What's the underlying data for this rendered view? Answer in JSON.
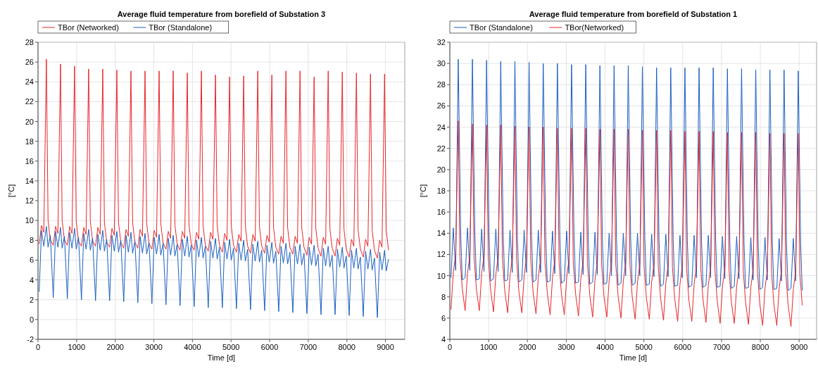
{
  "chart_data": [
    {
      "type": "line",
      "title": "Average fluid temperature from borefield of Substation 3",
      "xlabel": "Time [d]",
      "ylabel": "[°C]",
      "xlim": [
        0,
        9500
      ],
      "xticks": [
        0,
        1000,
        2000,
        3000,
        4000,
        5000,
        6000,
        7000,
        8000,
        9000
      ],
      "ylim": [
        -2,
        28
      ],
      "yticks": [
        -2,
        0,
        2,
        4,
        6,
        8,
        10,
        12,
        14,
        16,
        18,
        20,
        22,
        24,
        26,
        28
      ],
      "grid": true,
      "legend": "top left",
      "line_style": "solid",
      "x": [
        30,
        90,
        150,
        217,
        260,
        320,
        395,
        455,
        515,
        582,
        625,
        685,
        760,
        820,
        880,
        947,
        990,
        1050,
        1125,
        1185,
        1245,
        1312,
        1355,
        1415,
        1490,
        1550,
        1610,
        1677,
        1720,
        1780,
        1855,
        1915,
        1975,
        2042,
        2085,
        2145,
        2220,
        2280,
        2340,
        2407,
        2450,
        2510,
        2585,
        2645,
        2705,
        2772,
        2815,
        2875,
        2950,
        3010,
        3070,
        3137,
        3180,
        3240,
        3315,
        3375,
        3435,
        3502,
        3545,
        3605,
        3680,
        3740,
        3800,
        3867,
        3910,
        3970,
        4045,
        4105,
        4165,
        4232,
        4275,
        4335,
        4410,
        4470,
        4530,
        4597,
        4640,
        4700,
        4775,
        4835,
        4895,
        4962,
        5005,
        5065,
        5140,
        5200,
        5260,
        5327,
        5370,
        5430,
        5505,
        5565,
        5625,
        5692,
        5735,
        5795,
        5870,
        5930,
        5990,
        6057,
        6100,
        6160,
        6235,
        6295,
        6355,
        6422,
        6465,
        6525,
        6600,
        6660,
        6720,
        6787,
        6830,
        6890,
        6965,
        7025,
        7085,
        7152,
        7195,
        7255,
        7330,
        7390,
        7450,
        7517,
        7560,
        7620,
        7695,
        7755,
        7815,
        7882,
        7925,
        7985,
        8060,
        8120,
        8180,
        8247,
        8290,
        8350,
        8425,
        8485,
        8545,
        8612,
        8655,
        8715,
        8790,
        8850,
        8910,
        8977,
        9020,
        9080
      ],
      "series": [
        {
          "name": "TBor (Networked)",
          "color": "#e8262b",
          "values": [
            7.6,
            9.5,
            8.8,
            26.3,
            10.0,
            8.0,
            7.5,
            9.4,
            8.7,
            25.8,
            10.0,
            8.0,
            7.5,
            9.4,
            8.7,
            25.6,
            9.9,
            7.9,
            7.4,
            9.3,
            8.6,
            25.3,
            9.9,
            7.9,
            7.4,
            9.3,
            8.6,
            25.3,
            9.8,
            7.8,
            7.3,
            9.2,
            8.5,
            25.2,
            9.8,
            7.8,
            7.2,
            9.1,
            8.4,
            25.1,
            9.8,
            7.8,
            7.2,
            9.1,
            8.4,
            25.1,
            9.7,
            7.7,
            7.1,
            9.0,
            8.3,
            25.1,
            9.7,
            7.7,
            7.1,
            8.9,
            8.2,
            25.1,
            9.6,
            7.6,
            7.0,
            8.9,
            8.2,
            24.9,
            9.6,
            7.6,
            7.0,
            8.8,
            8.1,
            25.1,
            9.5,
            7.5,
            6.9,
            8.8,
            8.1,
            24.7,
            9.5,
            7.5,
            6.8,
            8.7,
            8.0,
            24.5,
            9.5,
            7.5,
            6.8,
            8.6,
            7.9,
            24.6,
            9.4,
            7.4,
            6.7,
            8.6,
            7.9,
            25.1,
            9.4,
            7.4,
            6.7,
            8.5,
            7.8,
            24.7,
            9.3,
            7.3,
            6.6,
            8.4,
            7.7,
            25.1,
            9.3,
            7.3,
            6.6,
            8.4,
            7.7,
            25.1,
            9.3,
            7.3,
            6.5,
            8.3,
            7.6,
            24.5,
            9.2,
            7.2,
            6.4,
            8.3,
            7.6,
            25.1,
            9.2,
            7.2,
            6.4,
            8.2,
            7.5,
            25.0,
            9.1,
            7.1,
            6.3,
            8.1,
            7.4,
            24.9,
            9.1,
            7.1,
            6.3,
            8.1,
            7.4,
            24.8,
            9.0,
            7.0,
            6.2,
            8.0,
            7.3,
            24.8,
            9.0,
            7.0
          ]
        },
        {
          "name": "TBor (Standalone)",
          "color": "#1a5fc0",
          "values": [
            2.8,
            9.0,
            7.4,
            9.4,
            7.3,
            8.5,
            2.2,
            8.9,
            7.3,
            9.3,
            7.2,
            8.4,
            2.1,
            8.8,
            7.2,
            9.2,
            7.1,
            8.3,
            2.0,
            8.7,
            7.1,
            9.1,
            7.0,
            8.2,
            1.9,
            8.6,
            7.0,
            9.0,
            6.9,
            8.1,
            1.9,
            8.5,
            6.9,
            8.9,
            6.8,
            8.0,
            1.8,
            8.5,
            6.8,
            8.8,
            6.7,
            7.9,
            1.7,
            8.4,
            6.7,
            8.7,
            6.6,
            7.8,
            1.6,
            8.3,
            6.6,
            8.6,
            6.5,
            7.7,
            1.5,
            8.2,
            6.5,
            8.5,
            6.4,
            7.6,
            1.4,
            8.1,
            6.4,
            8.4,
            6.3,
            7.5,
            1.3,
            8.0,
            6.3,
            8.3,
            6.2,
            7.4,
            1.2,
            7.9,
            6.2,
            8.2,
            6.1,
            7.3,
            1.2,
            7.8,
            6.1,
            8.1,
            6.0,
            7.2,
            1.1,
            7.7,
            6.0,
            8.0,
            5.9,
            7.1,
            1.0,
            7.6,
            5.9,
            7.9,
            5.8,
            7.0,
            0.9,
            7.5,
            5.8,
            7.8,
            5.7,
            6.9,
            0.8,
            7.4,
            5.7,
            7.7,
            5.6,
            6.8,
            0.7,
            7.4,
            5.6,
            7.6,
            5.5,
            6.7,
            0.6,
            7.3,
            5.5,
            7.5,
            5.4,
            6.6,
            0.5,
            7.2,
            5.4,
            7.4,
            5.3,
            6.5,
            0.5,
            7.1,
            5.3,
            7.3,
            5.2,
            6.4,
            0.4,
            7.0,
            5.2,
            7.2,
            5.1,
            6.3,
            0.3,
            6.9,
            5.1,
            7.1,
            5.0,
            6.2,
            0.2,
            6.8,
            5.0,
            7.0,
            4.9,
            6.1
          ]
        }
      ]
    },
    {
      "type": "line",
      "title": "Average fluid temperature from borefield of Substation 1",
      "xlabel": "Time [d]",
      "ylabel": "[°C]",
      "xlim": [
        0,
        9450
      ],
      "xticks": [
        0,
        1000,
        2000,
        3000,
        4000,
        5000,
        6000,
        7000,
        8000,
        9000
      ],
      "ylim": [
        4,
        32
      ],
      "yticks": [
        4,
        6,
        8,
        10,
        12,
        14,
        16,
        18,
        20,
        22,
        24,
        26,
        28,
        30,
        32
      ],
      "grid": true,
      "legend": "top left",
      "line_style": "solid",
      "x": [
        30,
        90,
        150,
        217,
        260,
        320,
        395,
        455,
        515,
        582,
        625,
        685,
        760,
        820,
        880,
        947,
        990,
        1050,
        1125,
        1185,
        1245,
        1312,
        1355,
        1415,
        1490,
        1550,
        1610,
        1677,
        1720,
        1780,
        1855,
        1915,
        1975,
        2042,
        2085,
        2145,
        2220,
        2280,
        2340,
        2407,
        2450,
        2510,
        2585,
        2645,
        2705,
        2772,
        2815,
        2875,
        2950,
        3010,
        3070,
        3137,
        3180,
        3240,
        3315,
        3375,
        3435,
        3502,
        3545,
        3605,
        3680,
        3740,
        3800,
        3867,
        3910,
        3970,
        4045,
        4105,
        4165,
        4232,
        4275,
        4335,
        4410,
        4470,
        4530,
        4597,
        4640,
        4700,
        4775,
        4835,
        4895,
        4962,
        5005,
        5065,
        5140,
        5200,
        5260,
        5327,
        5370,
        5430,
        5505,
        5565,
        5625,
        5692,
        5735,
        5795,
        5870,
        5930,
        5990,
        6057,
        6100,
        6160,
        6235,
        6295,
        6355,
        6422,
        6465,
        6525,
        6600,
        6660,
        6720,
        6787,
        6830,
        6890,
        6965,
        7025,
        7085,
        7152,
        7195,
        7255,
        7330,
        7390,
        7450,
        7517,
        7560,
        7620,
        7695,
        7755,
        7815,
        7882,
        7925,
        7985,
        8060,
        8120,
        8180,
        8247,
        8290,
        8350,
        8425,
        8485,
        8545,
        8612,
        8655,
        8715,
        8790,
        8850,
        8910,
        8977,
        9020,
        9080
      ],
      "series": [
        {
          "name": "TBor (Standalone)",
          "color": "#1a5fc0",
          "x": [
            30,
            90,
            150,
            217,
            280,
            320,
            395,
            455,
            515,
            582,
            645,
            685,
            760,
            820,
            880,
            947,
            1010,
            1050,
            1125,
            1185,
            1245,
            1312,
            1375,
            1415,
            1490,
            1550,
            1610,
            1677,
            1740,
            1780,
            1855,
            1915,
            1975,
            2042,
            2105,
            2145,
            2220,
            2280,
            2340,
            2407,
            2470,
            2510,
            2585,
            2645,
            2705,
            2772,
            2835,
            2875,
            2950,
            3010,
            3070,
            3137,
            3200,
            3240,
            3315,
            3375,
            3435,
            3502,
            3565,
            3605,
            3680,
            3740,
            3800,
            3867,
            3930,
            3970,
            4045,
            4105,
            4165,
            4232,
            4295,
            4335,
            4410,
            4470,
            4530,
            4597,
            4660,
            4700,
            4775,
            4835,
            4895,
            4962,
            5025,
            5065,
            5140,
            5200,
            5260,
            5327,
            5390,
            5430,
            5505,
            5565,
            5625,
            5692,
            5755,
            5795,
            5870,
            5930,
            5990,
            6057,
            6120,
            6160,
            6235,
            6295,
            6355,
            6422,
            6485,
            6525,
            6600,
            6660,
            6720,
            6787,
            6850,
            6890,
            6965,
            7025,
            7085,
            7152,
            7215,
            7255,
            7330,
            7390,
            7450,
            7517,
            7580,
            7620,
            7695,
            7755,
            7815,
            7882,
            7945,
            7985,
            8060,
            8120,
            8180,
            8247,
            8310,
            8350,
            8425,
            8485,
            8545,
            8612,
            8675,
            8715,
            8790,
            8850,
            8910,
            8977,
            9040,
            9080
          ],
          "values": [
            9.8,
            14.5,
            10.5,
            30.4,
            14.0,
            9.6,
            9.8,
            14.5,
            10.5,
            30.4,
            14.0,
            9.6,
            9.7,
            14.4,
            10.4,
            30.3,
            13.9,
            9.5,
            9.7,
            14.4,
            10.4,
            30.2,
            13.9,
            9.5,
            9.6,
            14.3,
            10.3,
            30.2,
            13.8,
            9.4,
            9.6,
            14.3,
            10.3,
            30.1,
            13.8,
            9.4,
            9.6,
            14.3,
            10.3,
            30.0,
            13.8,
            9.4,
            9.5,
            14.2,
            10.2,
            30.0,
            13.7,
            9.3,
            9.5,
            14.2,
            10.2,
            29.9,
            13.7,
            9.3,
            9.4,
            14.1,
            10.1,
            29.9,
            13.6,
            9.2,
            9.4,
            14.1,
            10.1,
            29.8,
            13.6,
            9.2,
            9.3,
            14.0,
            10.0,
            29.8,
            13.5,
            9.1,
            9.3,
            14.0,
            10.0,
            29.8,
            13.5,
            9.1,
            9.3,
            14.0,
            10.0,
            29.7,
            13.5,
            9.1,
            9.2,
            13.9,
            9.9,
            29.6,
            13.4,
            9.0,
            9.2,
            13.9,
            9.9,
            29.6,
            13.4,
            9.0,
            9.1,
            13.8,
            9.8,
            29.6,
            13.3,
            8.9,
            9.1,
            13.8,
            9.8,
            29.6,
            13.3,
            8.9,
            9.1,
            13.8,
            9.8,
            29.6,
            13.3,
            8.9,
            9.0,
            13.7,
            9.7,
            29.5,
            13.2,
            8.8,
            9.0,
            13.7,
            9.7,
            29.5,
            13.2,
            8.8,
            8.9,
            13.6,
            9.6,
            29.4,
            13.1,
            8.7,
            8.9,
            13.6,
            9.6,
            29.4,
            13.1,
            8.7,
            8.8,
            13.5,
            9.5,
            29.4,
            13.0,
            8.6,
            8.8,
            13.5,
            9.5,
            29.3,
            13.0,
            8.6
          ]
        },
        {
          "name": "TBor(Networked)",
          "color": "#e8262b",
          "values": [
            6.8,
            10.3,
            12.0,
            24.6,
            11.8,
            8.8,
            6.7,
            10.2,
            11.9,
            24.3,
            11.7,
            8.7,
            6.7,
            10.2,
            11.9,
            24.2,
            11.7,
            8.7,
            6.6,
            10.1,
            11.8,
            24.2,
            11.6,
            8.6,
            6.5,
            10.0,
            11.7,
            24.1,
            11.5,
            8.5,
            6.5,
            10.0,
            11.7,
            24.0,
            11.5,
            8.5,
            6.4,
            9.9,
            11.6,
            24.0,
            11.4,
            8.4,
            6.3,
            9.8,
            11.5,
            23.9,
            11.3,
            8.3,
            6.3,
            9.8,
            11.5,
            23.9,
            11.3,
            8.3,
            6.2,
            9.7,
            11.4,
            23.9,
            11.2,
            8.2,
            6.1,
            9.6,
            11.3,
            23.8,
            11.1,
            8.1,
            6.1,
            9.6,
            11.3,
            23.8,
            11.1,
            8.1,
            6.0,
            9.5,
            11.2,
            23.8,
            11.0,
            8.0,
            5.9,
            9.4,
            11.1,
            23.7,
            10.9,
            7.9,
            5.9,
            9.4,
            11.1,
            23.7,
            10.9,
            7.9,
            5.8,
            9.3,
            11.0,
            23.7,
            10.8,
            7.8,
            5.7,
            9.2,
            10.9,
            23.6,
            10.7,
            7.7,
            5.7,
            9.2,
            10.9,
            23.6,
            10.7,
            7.7,
            5.6,
            9.1,
            10.8,
            23.6,
            10.6,
            7.6,
            5.5,
            9.0,
            10.7,
            23.5,
            10.5,
            7.5,
            5.5,
            9.0,
            10.7,
            23.5,
            10.5,
            7.5,
            5.4,
            8.9,
            10.6,
            23.5,
            10.4,
            7.4,
            5.3,
            8.8,
            10.5,
            23.4,
            10.3,
            7.3,
            5.3,
            8.8,
            10.5,
            23.4,
            10.3,
            7.3,
            5.2,
            8.7,
            10.4,
            23.4,
            10.2,
            7.2
          ]
        }
      ]
    }
  ]
}
